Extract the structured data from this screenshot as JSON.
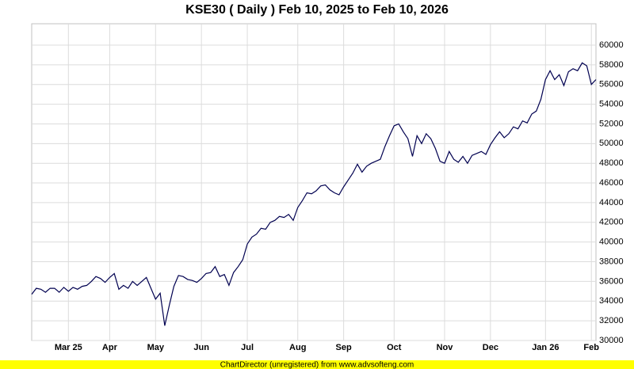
{
  "chart_data": {
    "type": "line",
    "title": "KSE30 ( Daily ) Feb 10, 2025 to Feb 10, 2026",
    "footer": "ChartDirector (unregistered) from www.advsofteng.com",
    "categories": [
      null,
      null,
      null,
      null,
      null,
      null,
      null,
      null,
      "Mar 25",
      null,
      null,
      null,
      null,
      null,
      null,
      null,
      null,
      "Apr",
      null,
      null,
      null,
      null,
      null,
      null,
      null,
      null,
      null,
      "May",
      null,
      null,
      null,
      null,
      null,
      null,
      null,
      null,
      null,
      "Jun",
      null,
      null,
      null,
      null,
      null,
      null,
      null,
      null,
      null,
      "Jul",
      null,
      null,
      null,
      null,
      null,
      null,
      null,
      null,
      null,
      null,
      "Aug",
      null,
      null,
      null,
      null,
      null,
      null,
      null,
      null,
      null,
      "Sep",
      null,
      null,
      null,
      null,
      null,
      null,
      null,
      null,
      null,
      null,
      "Oct",
      null,
      null,
      null,
      null,
      null,
      null,
      null,
      null,
      null,
      null,
      "Nov",
      null,
      null,
      null,
      null,
      null,
      null,
      null,
      null,
      null,
      "Dec",
      null,
      null,
      null,
      null,
      null,
      null,
      null,
      null,
      null,
      null,
      null,
      "Jan 26",
      null,
      null,
      null,
      null,
      null,
      null,
      null,
      null,
      null,
      "Feb",
      null
    ],
    "series": [
      {
        "color": "#000050",
        "values": [
          34700,
          35300,
          35200,
          34900,
          35300,
          35300,
          34900,
          35400,
          35000,
          35400,
          35200,
          35500,
          35600,
          36000,
          36500,
          36300,
          35900,
          36400,
          36800,
          35200,
          35600,
          35300,
          36000,
          35600,
          36000,
          36400,
          35300,
          34200,
          34800,
          31500,
          33600,
          35500,
          36600,
          36500,
          36200,
          36100,
          35900,
          36300,
          36800,
          36900,
          37500,
          36500,
          36700,
          35600,
          36900,
          37500,
          38200,
          39800,
          40500,
          40800,
          41400,
          41300,
          42000,
          42200,
          42600,
          42500,
          42800,
          42200,
          43500,
          44200,
          45000,
          44900,
          45200,
          45700,
          45800,
          45300,
          45000,
          44800,
          45600,
          46300,
          47000,
          47900,
          47100,
          47700,
          48000,
          48200,
          48400,
          49700,
          50800,
          51800,
          52000,
          51200,
          50500,
          48700,
          50800,
          50000,
          51000,
          50500,
          49500,
          48200,
          48000,
          49200,
          48400,
          48100,
          48700,
          48000,
          48800,
          49000,
          49200,
          48900,
          49900,
          50600,
          51200,
          50600,
          51000,
          51700,
          51500,
          52300,
          52100,
          53000,
          53300,
          54500,
          56500,
          57400,
          56500,
          57000,
          55900,
          57300,
          57600,
          57400,
          58200,
          57900,
          56000,
          56500
        ]
      }
    ],
    "ylim": [
      30000,
      62170
    ],
    "yticks": [
      30000,
      32000,
      34000,
      36000,
      38000,
      40000,
      42000,
      44000,
      46000,
      48000,
      50000,
      52000,
      54000,
      56000,
      58000,
      60000
    ],
    "grid": true
  }
}
